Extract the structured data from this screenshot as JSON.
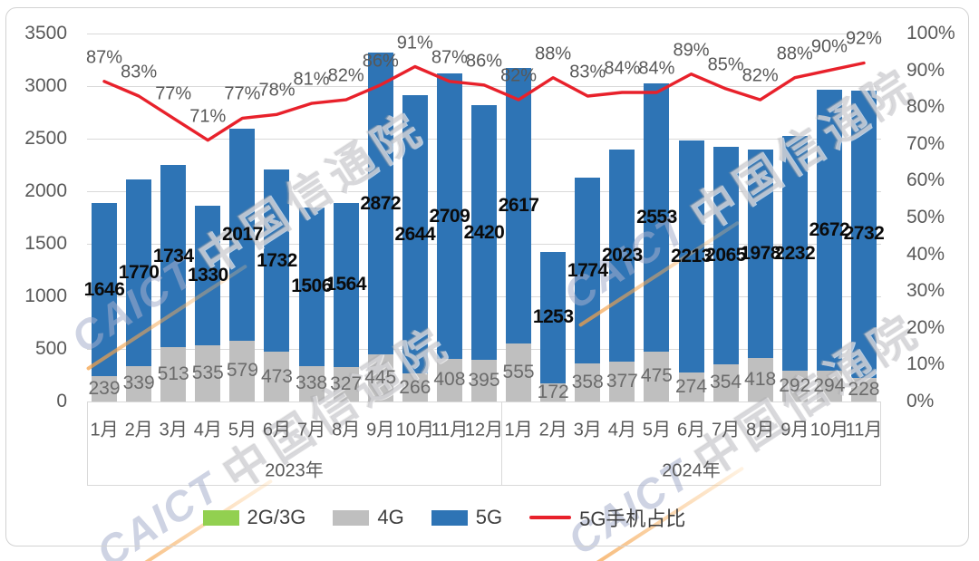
{
  "watermark": {
    "brand": "CAICT",
    "name": "中国信通院"
  },
  "chart_data": {
    "type": "bar",
    "subtype": "stacked-bars-with-perc句line",
    "title": "",
    "stacked": true,
    "grid": true,
    "legend_position": "bottom",
    "groups": [
      {
        "label": "2023年",
        "months": [
          "1月",
          "2月",
          "3月",
          "4月",
          "5月",
          "6月",
          "7月",
          "8月",
          "9月",
          "10月",
          "11月",
          "12月"
        ]
      },
      {
        "label": "2024年",
        "months": [
          "1月",
          "2月",
          "3月",
          "4月",
          "5月",
          "6月",
          "7月",
          "8月",
          "9月",
          "10月",
          "11月"
        ]
      }
    ],
    "series": [
      {
        "name": "2G/3G",
        "color": "#92d050",
        "values": []
      },
      {
        "name": "4G",
        "color": "#bfbfbf",
        "values": [
          239,
          339,
          513,
          535,
          579,
          473,
          338,
          327,
          445,
          266,
          408,
          395,
          555,
          172,
          358,
          377,
          475,
          274,
          354,
          418,
          292,
          294,
          228
        ]
      },
      {
        "name": "5G",
        "color": "#2e74b5",
        "values": [
          1646,
          1770,
          1734,
          1330,
          2017,
          1732,
          1506,
          1564,
          2872,
          2644,
          2709,
          2420,
          2617,
          1253,
          1774,
          2023,
          2553,
          2213,
          2065,
          1978,
          2232,
          2672,
          2732
        ]
      }
    ],
    "line_series": {
      "name": "5G手机占比",
      "color": "#e8212b",
      "unit": "%",
      "values": [
        87,
        83,
        77,
        71,
        77,
        78,
        81,
        82,
        86,
        91,
        87,
        86,
        82,
        88,
        83,
        84,
        84,
        89,
        85,
        82,
        88,
        90,
        92
      ]
    },
    "left_axis": {
      "min": 0,
      "max": 3500,
      "step": 500,
      "ticks": [
        "3500",
        "3000",
        "2500",
        "2000",
        "1500",
        "1000",
        "500",
        "0"
      ]
    },
    "right_axis": {
      "min": 0,
      "max": 100,
      "step": 10,
      "ticks": [
        "100%",
        "90%",
        "80%",
        "70%",
        "60%",
        "50%",
        "40%",
        "30%",
        "20%",
        "10%",
        "0%"
      ]
    }
  }
}
